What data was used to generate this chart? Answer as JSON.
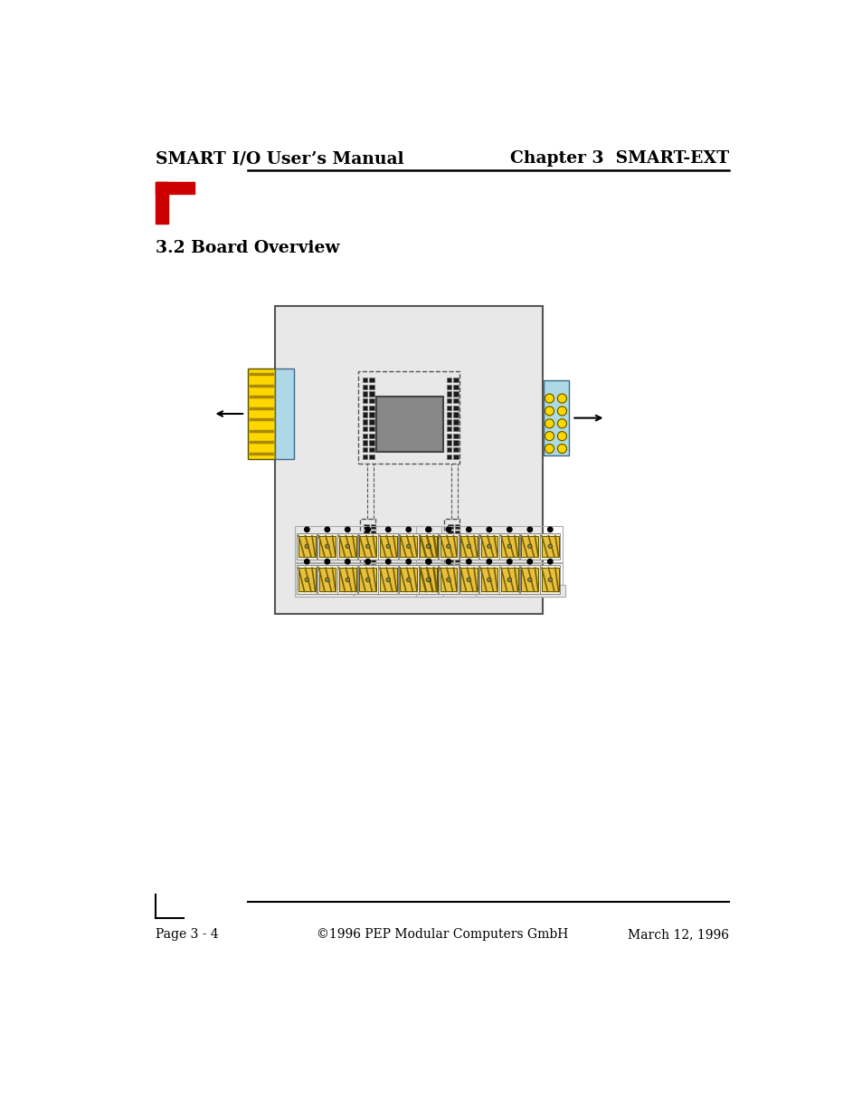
{
  "page_title_left": "SMART I/O User’s Manual",
  "page_title_right": "Chapter 3  SMART-EXT",
  "section_title": "3.2 Board Overview",
  "footer_left": "Page 3 - 4",
  "footer_center": "©1996 PEP Modular Computers GmbH",
  "footer_right": "March 12, 1996",
  "board_bg": "#e8e8e8",
  "board_border": "#777777",
  "connector_yellow": "#FFD700",
  "connector_blue": "#ADD8E6",
  "chip_gray": "#888888",
  "pin_dark": "#333333",
  "terminal_body_yellow": "#E8C040",
  "terminal_body_cream": "#F5F0DC",
  "terminal_stripe_dark": "#7A6000"
}
